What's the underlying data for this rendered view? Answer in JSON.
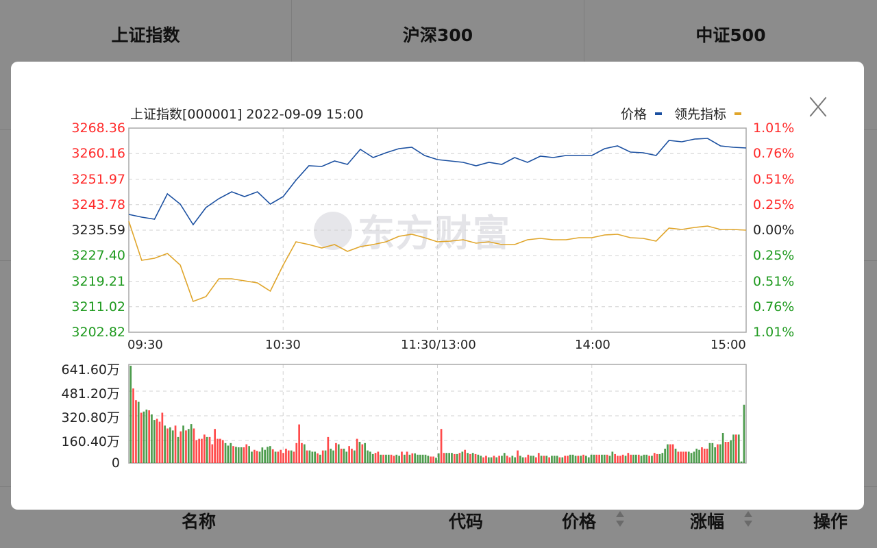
{
  "background": {
    "indices": [
      {
        "name": "上证指数"
      },
      {
        "name": "沪深300"
      },
      {
        "name": "中证500"
      }
    ],
    "table_headers": {
      "name": "名称",
      "code": "代码",
      "price": "价格",
      "change": "涨幅",
      "action": "操作"
    }
  },
  "modal": {
    "close_icon": "close-x-icon",
    "title": "上证指数[000001] 2022-09-09 15:00",
    "legend": [
      {
        "label": "价格",
        "color": "#1a4fa0"
      },
      {
        "label": "领先指标",
        "color": "#e0a52a"
      }
    ],
    "watermark": "东方财富"
  },
  "chart_data": [
    {
      "type": "line",
      "x_ticks": [
        "09:30",
        "10:30",
        "11:30/13:00",
        "14:00",
        "15:00"
      ],
      "x_interval_minutes": 5,
      "y_ticks": [
        "3268.36",
        "3260.16",
        "3251.97",
        "3243.78",
        "3235.59",
        "3227.40",
        "3219.21",
        "3211.02",
        "3202.82"
      ],
      "y_tick_colors": [
        "#ff2a2a",
        "#ff2a2a",
        "#ff2a2a",
        "#ff2a2a",
        "#222222",
        "#1f9a1f",
        "#1f9a1f",
        "#1f9a1f",
        "#1f9a1f"
      ],
      "y2_ticks": [
        "1.01%",
        "0.76%",
        "0.51%",
        "0.25%",
        "0.00%",
        "0.25%",
        "0.51%",
        "0.76%",
        "1.01%"
      ],
      "ylim": [
        3202.82,
        3268.36
      ],
      "grid": true,
      "legend_position": "top-right",
      "series": [
        {
          "name": "价格",
          "color": "#1a4fa0",
          "values": [
            3240.65,
            3239.77,
            3239.11,
            3247.25,
            3243.95,
            3237.35,
            3242.85,
            3245.71,
            3247.91,
            3246.37,
            3247.91,
            3243.95,
            3246.37,
            3251.65,
            3256.26,
            3256.04,
            3257.8,
            3256.7,
            3261.54,
            3258.9,
            3260.44,
            3261.76,
            3262.2,
            3259.56,
            3258.24,
            3257.8,
            3257.36,
            3256.26,
            3257.36,
            3256.7,
            3258.9,
            3257.36,
            3259.34,
            3258.9,
            3259.56,
            3259.56,
            3259.56,
            3261.76,
            3262.64,
            3260.66,
            3260.44,
            3259.56,
            3264.4,
            3263.96,
            3264.84,
            3265.06,
            3262.64,
            3262.2,
            3261.98
          ]
        },
        {
          "name": "领先指标",
          "color": "#e0a52a",
          "values": [
            3238.45,
            3225.91,
            3226.57,
            3228.11,
            3224.37,
            3212.72,
            3214.26,
            3219.98,
            3219.98,
            3219.32,
            3218.66,
            3216.02,
            3224.37,
            3231.85,
            3230.97,
            3229.87,
            3230.97,
            3228.77,
            3230.31,
            3230.97,
            3231.85,
            3233.61,
            3234.27,
            3233.17,
            3231.85,
            3232.07,
            3232.51,
            3231.41,
            3231.85,
            3230.97,
            3230.97,
            3232.51,
            3232.95,
            3232.51,
            3232.51,
            3233.17,
            3233.17,
            3234.05,
            3234.27,
            3233.17,
            3232.95,
            3232.07,
            3236.25,
            3235.81,
            3236.47,
            3236.91,
            3235.81,
            3235.81,
            3235.59
          ]
        }
      ]
    },
    {
      "type": "bar",
      "unit": "万",
      "y_ticks": [
        "641.60万",
        "481.20万",
        "320.80万",
        "160.40万",
        "0"
      ],
      "ylim": [
        0,
        641.6
      ],
      "grid": true,
      "up_color": "#ff2a2a",
      "down_color": "#2e8b2e",
      "values": [
        642,
        492,
        415,
        404,
        332,
        340,
        353,
        348,
        321,
        284,
        292,
        273,
        332,
        247,
        228,
        236,
        215,
        247,
        172,
        209,
        247,
        215,
        225,
        257,
        228,
        152,
        160,
        160,
        188,
        172,
        172,
        124,
        225,
        160,
        160,
        152,
        132,
        115,
        132,
        112,
        107,
        104,
        104,
        104,
        124,
        112,
        75,
        87,
        80,
        75,
        103,
        87,
        107,
        112,
        91,
        75,
        75,
        87,
        67,
        95,
        83,
        83,
        75,
        132,
        255,
        132,
        124,
        83,
        83,
        75,
        75,
        64,
        55,
        83,
        83,
        172,
        95,
        83,
        132,
        124,
        95,
        95,
        75,
        112,
        95,
        83,
        160,
        140,
        124,
        132,
        83,
        75,
        59,
        67,
        75,
        55,
        55,
        55,
        55,
        55,
        48,
        55,
        48,
        75,
        55,
        75,
        55,
        64,
        64,
        55,
        55,
        55,
        55,
        48,
        43,
        43,
        35,
        64,
        225,
        67,
        67,
        67,
        67,
        59,
        59,
        67,
        75,
        87,
        67,
        59,
        67,
        59,
        55,
        48,
        38,
        48,
        38,
        38,
        48,
        38,
        48,
        48,
        67,
        48,
        38,
        48,
        38,
        83,
        48,
        38,
        38,
        55,
        48,
        48,
        38,
        67,
        48,
        48,
        48,
        38,
        48,
        48,
        48,
        38,
        38,
        48,
        48,
        55,
        55,
        48,
        48,
        48,
        55,
        48,
        38,
        55,
        55,
        55,
        55,
        55,
        55,
        55,
        48,
        75,
        59,
        48,
        48,
        55,
        48,
        67,
        55,
        55,
        55,
        55,
        48,
        55,
        55,
        48,
        48,
        67,
        59,
        59,
        67,
        95,
        124,
        124,
        124,
        95,
        75,
        75,
        75,
        75,
        75,
        67,
        75,
        95,
        87,
        104,
        95,
        95,
        132,
        132,
        104,
        124,
        124,
        199,
        140,
        140,
        151,
        188,
        188,
        188,
        11,
        385
      ],
      "directions": "GRRGRGGRGGRRRGRGGRGRGRGGRRRRRGRRRRRRGGGRGGGRRGGRRGGGGGRGRRRRRGRRRRGRGGGRGRGRGGRGRGGRRGRGRGGGGRRGRGGRRGGRGRGRGGGGGGRRGGRRGGGRGRGRGRGRGGRRGGRGRGGRRGGRGGRRGGRRGRGRGGGRGRRGGGRGRGGGGRRGGRGGRRRRGRRGGRGGGRGRRGGGGRRGRRRRGGGGGRRRGGGRGGRRGGRGGGGRGGR"
    }
  ]
}
